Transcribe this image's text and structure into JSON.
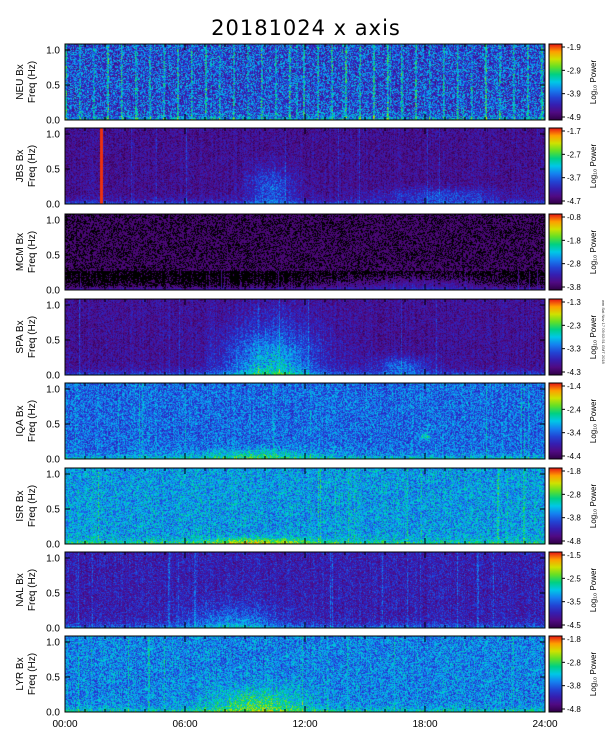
{
  "chart_data": {
    "type": "heatmap",
    "title": "20181024 x axis",
    "x_ticks": [
      "00:00",
      "06:00",
      "12:00",
      "18:00",
      "24:00"
    ],
    "xlim_hours": [
      0,
      24
    ],
    "y_ticks": [
      "0.0",
      "0.5",
      "1.0"
    ],
    "ylim_hz": [
      0,
      1.0
    ],
    "colorbar_label": "Log₁₀ Power",
    "panels": [
      {
        "station": "NEU Bx",
        "ylabel": "Freq (Hz)",
        "cbar_ticks": [
          "-1.9",
          "-2.9",
          "-3.9",
          "-4.9"
        ]
      },
      {
        "station": "JBS Bx",
        "ylabel": "Freq (Hz)",
        "cbar_ticks": [
          "-1.7",
          "-2.7",
          "-3.7",
          "-4.7"
        ]
      },
      {
        "station": "MCM Bx",
        "ylabel": "Freq (Hz)",
        "cbar_ticks": [
          "-0.8",
          "-1.8",
          "-2.8",
          "-3.8"
        ]
      },
      {
        "station": "SPA Bx",
        "ylabel": "Freq (Hz)",
        "cbar_ticks": [
          "-1.3",
          "-2.3",
          "-3.3",
          "-4.3"
        ]
      },
      {
        "station": "IQA Bx",
        "ylabel": "Freq (Hz)",
        "cbar_ticks": [
          "-1.4",
          "-2.4",
          "-3.4",
          "-4.4"
        ]
      },
      {
        "station": "ISR Bx",
        "ylabel": "Freq (Hz)",
        "cbar_ticks": [
          "-1.8",
          "-2.8",
          "-3.8",
          "-4.8"
        ]
      },
      {
        "station": "NAL Bx",
        "ylabel": "Freq (Hz)",
        "cbar_ticks": [
          "-1.5",
          "-2.5",
          "-3.5",
          "-4.5"
        ]
      },
      {
        "station": "LYR Bx",
        "ylabel": "Freq (Hz)",
        "cbar_ticks": [
          "-1.8",
          "-2.8",
          "-3.8",
          "-4.8"
        ]
      }
    ]
  },
  "side_note": "wm Sat Nov 17 09:02:51 GMT 2018"
}
